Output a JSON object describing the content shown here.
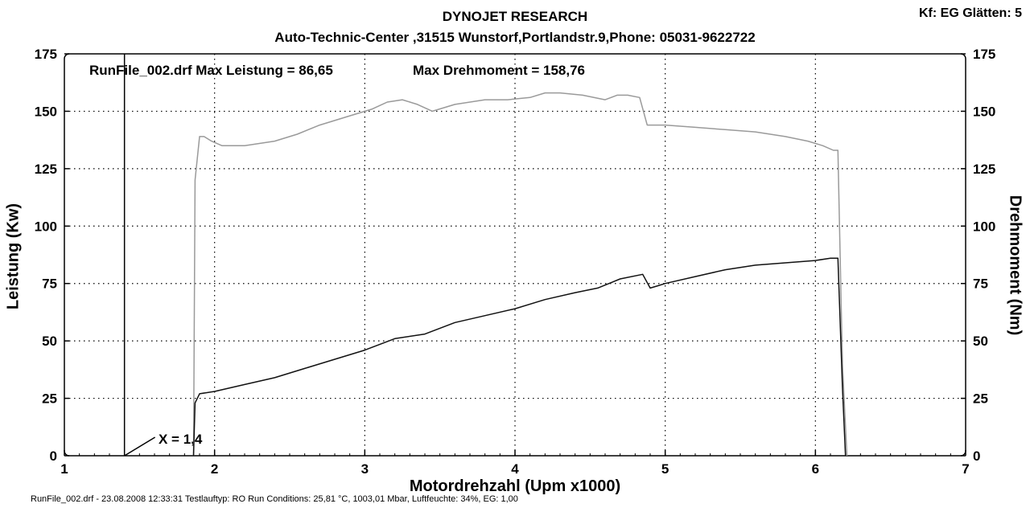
{
  "header": {
    "title": "DYNOJET RESEARCH",
    "subtitle": "Auto-Technic-Center ,31515 Wunstorf,Portlandstr.9,Phone: 05031-9622722",
    "kf": "Kf: EG  Glätten: 5"
  },
  "annotations": {
    "max_leistung": "RunFile_002.drf Max Leistung = 86,65",
    "max_drehmoment": "Max Drehmoment = 158,76",
    "x_marker": "X = 1,4"
  },
  "footer": "RunFile_002.drf - 23.08.2008 12:33:31  Testlauftyp: RO  Run Conditions: 25,81 °C, 1003,01 Mbar,  Luftfeuchte: 34%, EG: 1,00",
  "chart_data": {
    "type": "line",
    "xlabel": "Motordrehzahl (Upm x1000)",
    "ylabel": "Leistung (Kw)",
    "ylabel_right": "Drehmoment (Nm)",
    "xlim": [
      1,
      7
    ],
    "ylim": [
      0,
      175
    ],
    "ylim_right": [
      0,
      175
    ],
    "x_ticks": [
      "1",
      "2",
      "3",
      "4",
      "5",
      "6",
      "7"
    ],
    "y_ticks": [
      "0",
      "25",
      "50",
      "75",
      "100",
      "125",
      "150",
      "175"
    ],
    "grid": true,
    "marker_x": 1.4,
    "series": [
      {
        "color": "#9a9a9a",
        "axis": "right",
        "x": [
          1.86,
          1.87,
          1.9,
          1.93,
          1.98,
          2.05,
          2.2,
          2.4,
          2.55,
          2.7,
          2.9,
          3.05,
          3.15,
          3.25,
          3.35,
          3.45,
          3.6,
          3.8,
          3.95,
          4.1,
          4.2,
          4.3,
          4.45,
          4.6,
          4.68,
          4.75,
          4.83,
          4.88,
          4.92,
          5.0,
          5.2,
          5.4,
          5.6,
          5.8,
          5.95,
          6.05,
          6.12,
          6.15,
          6.18,
          6.21
        ],
        "y": [
          0,
          120,
          139,
          139,
          137,
          135,
          135,
          137,
          140,
          144,
          148,
          151,
          154,
          155,
          153,
          150,
          153,
          155,
          155,
          156,
          158,
          158,
          157,
          155,
          157,
          157,
          156,
          144,
          144,
          144,
          143,
          142,
          141,
          139,
          137,
          135,
          133,
          133,
          40,
          0
        ]
      },
      {
        "color": "#111111",
        "axis": "left",
        "x": [
          1.86,
          1.87,
          1.9,
          2.0,
          2.2,
          2.4,
          2.6,
          2.8,
          3.0,
          3.2,
          3.4,
          3.6,
          3.8,
          4.0,
          4.2,
          4.4,
          4.55,
          4.7,
          4.85,
          4.9,
          4.95,
          5.0,
          5.2,
          5.4,
          5.6,
          5.8,
          6.0,
          6.1,
          6.15,
          6.18,
          6.2
        ],
        "y": [
          0,
          23,
          27,
          28,
          31,
          34,
          38,
          42,
          46,
          51,
          53,
          58,
          61,
          64,
          68,
          71,
          73,
          77,
          79,
          73,
          74,
          75,
          78,
          81,
          83,
          84,
          85,
          86,
          86,
          30,
          0
        ]
      }
    ]
  }
}
